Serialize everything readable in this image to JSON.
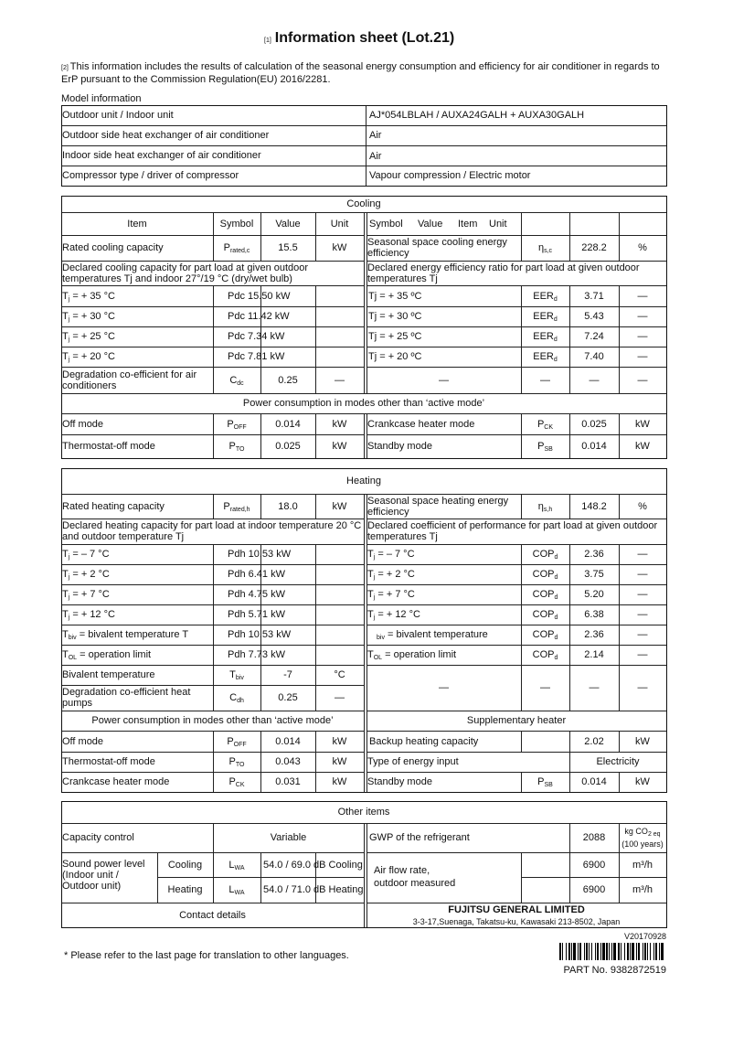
{
  "title": {
    "ref": "[1]",
    "text": "Information sheet (Lot.21)"
  },
  "intro": {
    "ref": "[2]",
    "text": "This information includes the results of calculation of the seasonal energy consumption and efficiency for air conditioner in regards to ErP pursuant to the Commission Regulation(EU) 2016/2281."
  },
  "model": {
    "label": "Model information",
    "rows": [
      [
        "Outdoor unit / Indoor unit",
        "AJ*054LBLAH / AUXA24GALH + AUXA30GALH"
      ],
      [
        "Outdoor side heat exchanger of air conditioner",
        "Air"
      ],
      [
        "Indoor side heat exchanger of air conditioner",
        "Air"
      ],
      [
        "Compressor type / driver of compressor",
        "Vapour compression / Electric motor"
      ]
    ]
  },
  "cooling": {
    "title": "Cooling",
    "headers": [
      "Item",
      "Symbol",
      "Value",
      "Unit"
    ],
    "right_headers": [
      "Symbol",
      "Value",
      "Item",
      "Unit"
    ],
    "rated": {
      "label": "Rated cooling capacity",
      "sym": "P",
      "sym_sub": "rated,c",
      "value": "15.5",
      "unit": "kW"
    },
    "seasonal": {
      "label": "Seasonal space cooling energy efficiency",
      "sym": "η",
      "sym_sub": "s,c",
      "value": "228.2",
      "unit": "%"
    },
    "declared_left": "Declared cooling capacity for part load at given outdoor temperatures Tj and indoor 27°/19 °C (dry/wet bulb)",
    "declared_right": "Declared energy efficiency ratio for part load at given outdoor temperatures Tj",
    "left_rows": [
      {
        "t": "T",
        "s": "j",
        "rest": " = + 35 °C",
        "value": "Pdc 15.50 kW"
      },
      {
        "t": "T",
        "s": "j",
        "rest": " = + 30 °C",
        "value": "Pdc 11.42 kW"
      },
      {
        "t": "T",
        "s": "j",
        "rest": " = + 25 °C",
        "value": "Pdc 7.34 kW"
      },
      {
        "t": "T",
        "s": "j",
        "rest": " = + 20 °C",
        "value": "Pdc 7.81 kW"
      }
    ],
    "right_rows": [
      {
        "label": "Tj = + 35 ºC",
        "sym": "EER",
        "sym_sub": "d",
        "value": "3.71",
        "unit": "—"
      },
      {
        "label": "Tj = + 30 ºC",
        "sym": "EER",
        "sym_sub": "d",
        "value": "5.43",
        "unit": "—"
      },
      {
        "label": "Tj = + 25 ºC",
        "sym": "EER",
        "sym_sub": "d",
        "value": "7.24",
        "unit": "—"
      },
      {
        "label": "Tj = + 20 ºC",
        "sym": "EER",
        "sym_sub": "d",
        "value": "7.40",
        "unit": "—"
      }
    ],
    "degradation": {
      "label": "Degradation co-efficient for air conditioners",
      "sym": "C",
      "sym_sub": "dc",
      "value": "0.25",
      "unit": "—",
      "right": [
        "—",
        "—",
        "—",
        "—"
      ]
    },
    "power_title": "Power consumption in modes other than ‘active mode’",
    "power_rows": [
      {
        "l_label": "Off mode",
        "l_sym": "P",
        "l_sub": "OFF",
        "l_value": "0.014",
        "l_unit": "kW",
        "r_label": "Crankcase heater mode",
        "r_sym": "P",
        "r_sub": "CK",
        "r_value": "0.025",
        "r_unit": "kW"
      },
      {
        "l_label": "Thermostat-off mode",
        "l_sym": "P",
        "l_sub": "TO",
        "l_value": "0.025",
        "l_unit": "kW",
        "r_label": "Standby mode",
        "r_sym": "P",
        "r_sub": "SB",
        "r_value": "0.014",
        "r_unit": "kW"
      }
    ]
  },
  "heating": {
    "title": "Heating",
    "rated": {
      "label": "Rated heating capacity",
      "sym": "P",
      "sym_sub": "rated,h",
      "value": "18.0",
      "unit": "kW"
    },
    "seasonal": {
      "label": "Seasonal space heating energy efficiency",
      "sym": "η",
      "sym_sub": "s,h",
      "value": "148.2",
      "unit": "%"
    },
    "declared_left": "Declared heating capacity for part load at indoor temperature 20 °C and outdoor temperature Tj",
    "declared_right": "Declared coefficient of performance for part load at given outdoor temperatures Tj",
    "rows": [
      {
        "t": "T",
        "s": "j",
        "rest": " = – 7 °C",
        "value": "Pdh 10.53 kW",
        "r_t": "T",
        "r_s": "j",
        "r_rest": " = – 7 °C",
        "sym": "COP",
        "sym_sub": "d",
        "r_value": "2.36",
        "r_unit": "—"
      },
      {
        "t": "T",
        "s": "j",
        "rest": " = + 2 °C",
        "value": "Pdh 6.41 kW",
        "r_t": "T",
        "r_s": "j",
        "r_rest": " = + 2 °C",
        "sym": "COP",
        "sym_sub": "d",
        "r_value": "3.75",
        "r_unit": "—"
      },
      {
        "t": "T",
        "s": "j",
        "rest": " = + 7 °C",
        "value": "Pdh 4.75 kW",
        "r_t": "T",
        "r_s": "j",
        "r_rest": " = + 7 °C",
        "sym": "COP",
        "sym_sub": "d",
        "r_value": "5.20",
        "r_unit": "—"
      },
      {
        "t": "T",
        "s": "j",
        "rest": " = + 12 °C",
        "value": "Pdh 5.71 kW",
        "r_t": "T",
        "r_s": "j",
        "r_rest": " = + 12 °C",
        "sym": "COP",
        "sym_sub": "d",
        "r_value": "6.38",
        "r_unit": "—"
      },
      {
        "t": "T",
        "s": "biv",
        "rest": " = bivalent temperature T",
        "value": "Pdh 10.53 kW",
        "r_t": "",
        "r_s": "biv",
        "r_rest": " = bivalent temperature",
        "sym": "COP",
        "sym_sub": "d",
        "r_value": "2.36",
        "r_unit": "—"
      },
      {
        "t": "T",
        "s": "OL",
        "rest": " = operation limit",
        "value": "Pdh 7.73 kW",
        "r_t": "T",
        "r_s": "OL",
        "r_rest": " = operation limit",
        "sym": "COP",
        "sym_sub": "d",
        "r_value": "2.14",
        "r_unit": "—"
      }
    ],
    "bivalent": {
      "label": "Bivalent temperature",
      "sym": "T",
      "sym_sub": "biv",
      "value": "-7",
      "unit": "°C"
    },
    "degradation": {
      "label": "Degradation co-efficient heat pumps",
      "sym": "C",
      "sym_sub": "dh",
      "value": "0.25",
      "unit": "—"
    },
    "right_dashes": [
      "—",
      "—",
      "—",
      "—"
    ],
    "power_title": "Power consumption in modes other than ‘active mode’",
    "supp_title": "Supplementary heater",
    "power_rows": [
      {
        "label": "Off mode",
        "sym": "P",
        "sym_sub": "OFF",
        "value": "0.014",
        "unit": "kW"
      },
      {
        "label": "Thermostat-off mode",
        "sym": "P",
        "sym_sub": "TO",
        "value": "0.043",
        "unit": "kW"
      },
      {
        "label": "Crankcase heater mode",
        "sym": "P",
        "sym_sub": "CK",
        "value": "0.031",
        "unit": "kW"
      }
    ],
    "backup": {
      "label": "Backup heating capacity",
      "value": "2.02",
      "unit": "kW"
    },
    "energy_input": {
      "label": "Type of energy input",
      "value": "Electricity"
    },
    "standby": {
      "label": "Standby mode",
      "sym": "P",
      "sym_sub": "SB",
      "value": "0.014",
      "unit": "kW"
    }
  },
  "other": {
    "title": "Other items",
    "capacity_control": {
      "label": "Capacity control",
      "value": "Variable"
    },
    "gwp": {
      "label": "GWP of the refrigerant",
      "value": "2088",
      "unit_main": "kg CO",
      "unit_sub": "2 eq",
      "unit_line2": "(100 years)"
    },
    "sound": {
      "label": "Sound power level (Indoor unit / Outdoor unit)",
      "rows": [
        {
          "mode": "Cooling",
          "sym": "L",
          "sym_sub": "WA",
          "value": "54.0 / 69.0 dB Cooling"
        },
        {
          "mode": "Heating",
          "sym": "L",
          "sym_sub": "WA",
          "value": "54.0 / 71.0 dB Heating"
        }
      ]
    },
    "airflow": {
      "label_1": "Air flow rate,",
      "label_2": "outdoor measured",
      "cooling_value": "6900",
      "heating_value": "6900",
      "unit": "m³/h"
    },
    "contact": {
      "label": "Contact details",
      "company": "FUJITSU GENERAL LIMITED",
      "address": "3-3-17,Suenaga, Takatsu-ku, Kawasaki 213-8502, Japan"
    }
  },
  "footer": {
    "version": "V20170928",
    "note": "* Please refer to the last page for translation to other languages.",
    "part_no": "PART No.  9382872519"
  }
}
